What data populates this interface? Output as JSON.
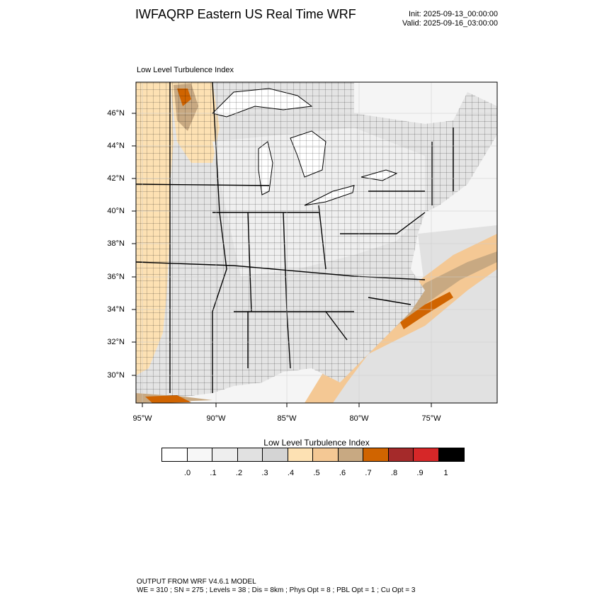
{
  "header": {
    "title": "IWFAQRP Eastern US Real Time WRF",
    "init": "Init: 2025-09-13_00:00:00",
    "valid": "Valid: 2025-09-16_03:00:00"
  },
  "panel_title": "Low Level Turbulence Index",
  "lat_labels": [
    "46°N",
    "44°N",
    "42°N",
    "40°N",
    "38°N",
    "36°N",
    "34°N",
    "32°N",
    "30°N"
  ],
  "lon_labels": [
    "95°W",
    "90°W",
    "85°W",
    "80°W",
    "75°W"
  ],
  "colorbar": {
    "title": "Low Level Turbulence Index",
    "colors": [
      "#ffffff",
      "#f7f7f7",
      "#eeeeee",
      "#e1e1e1",
      "#d4d4d4",
      "#fde1b3",
      "#f4c894",
      "#c8a982",
      "#d06400",
      "#a52a2a",
      "#d62728",
      "#000000"
    ],
    "labels": [
      ".0",
      ".1",
      ".2",
      ".3",
      ".4",
      ".5",
      ".6",
      ".7",
      ".8",
      ".9",
      "1"
    ]
  },
  "footer": {
    "line1": "OUTPUT FROM WRF V4.6.1 MODEL",
    "line2": "WE = 310 ; SN = 275 ; Levels = 38 ; Dis = 8km ; Phys Opt = 8 ; PBL Opt = 1 ; Cu Opt = 3"
  }
}
